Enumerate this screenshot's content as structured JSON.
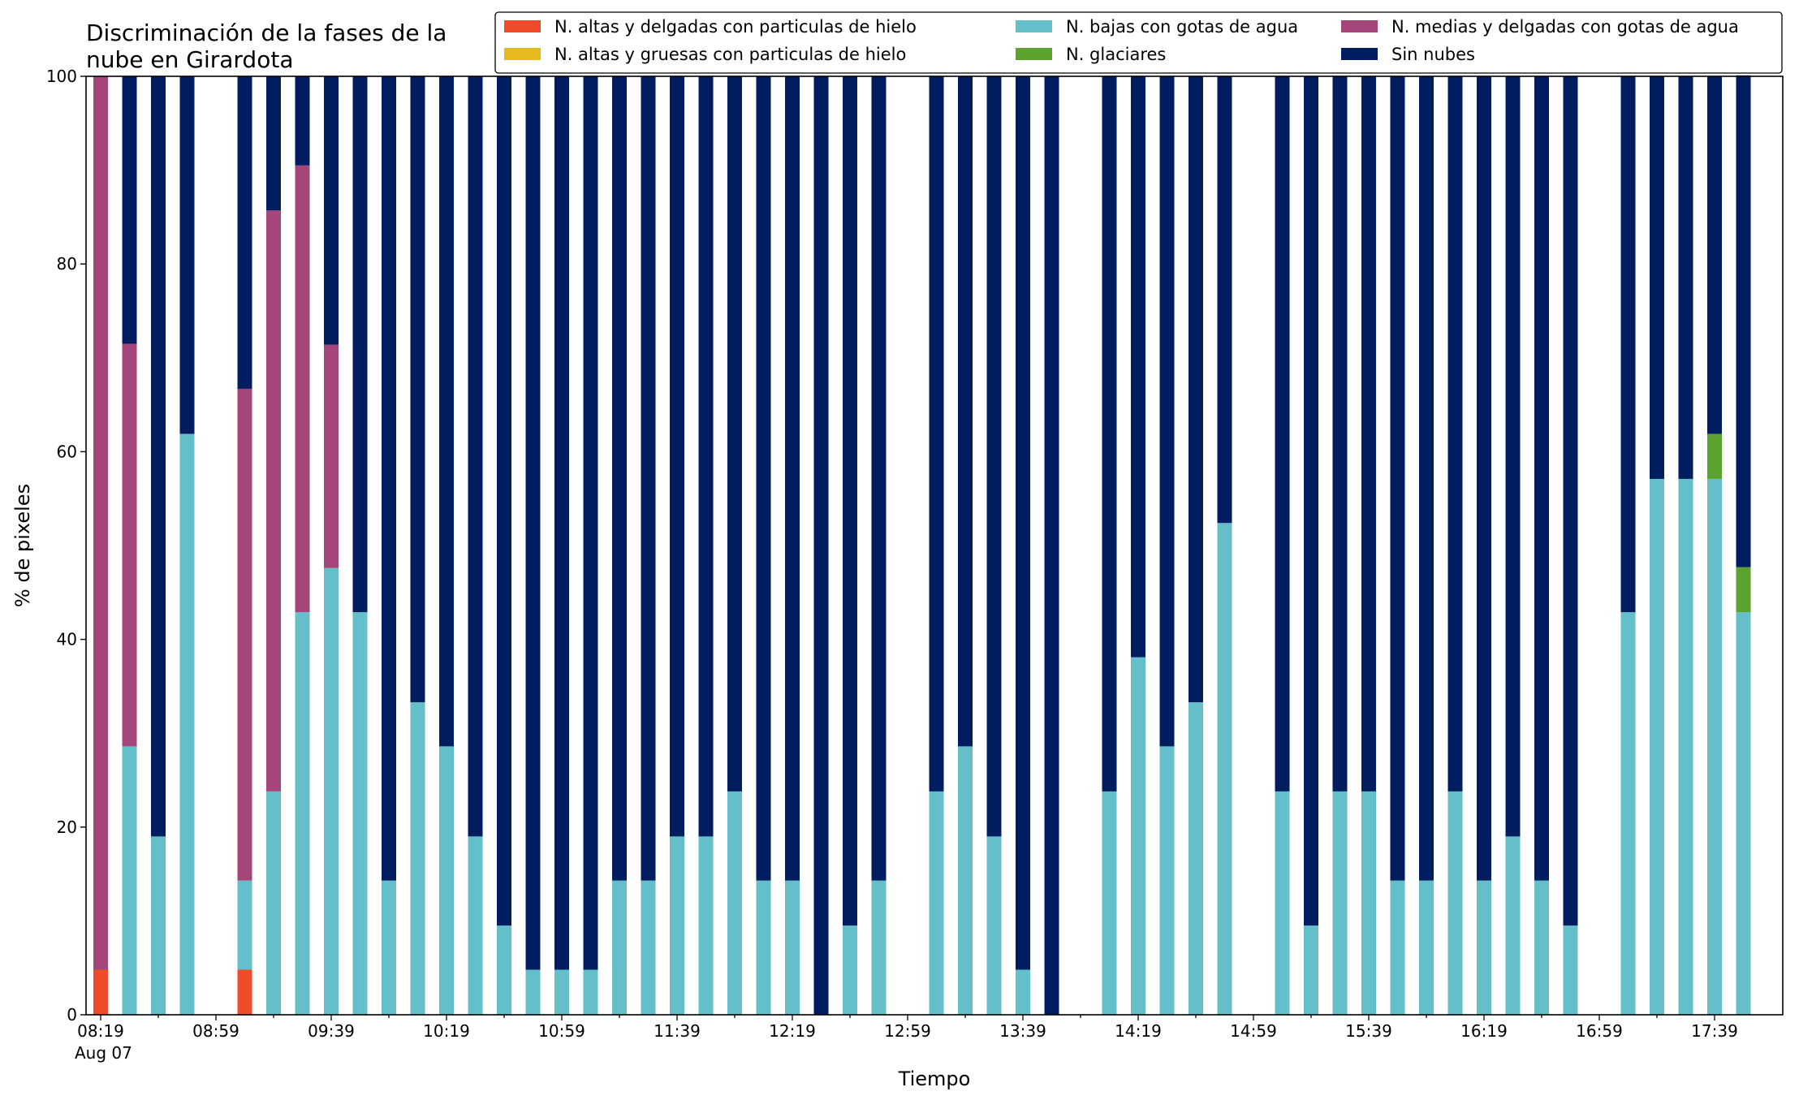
{
  "chart_data": {
    "type": "bar",
    "stacked": true,
    "title_lines": [
      "Discriminación de la fases de la",
      "nube en Girardota"
    ],
    "xlabel": "Tiempo",
    "ylabel": "% de pixeles",
    "ylim": [
      0,
      100
    ],
    "yticks": [
      0,
      20,
      40,
      60,
      80,
      100
    ],
    "grid": false,
    "legend_position": "top-right",
    "x_tick_labels": [
      "08:19",
      "08:59",
      "09:39",
      "10:19",
      "10:59",
      "11:39",
      "12:19",
      "12:59",
      "13:39",
      "14:19",
      "14:59",
      "15:39",
      "16:19",
      "16:59",
      "17:39"
    ],
    "x_tick_sublabel": "Aug 07",
    "x_start": "Aug 07 08:19",
    "slot_minutes": 10,
    "slot_count": 58,
    "bar_slots": [
      0,
      1,
      2,
      3,
      5,
      6,
      7,
      8,
      9,
      10,
      11,
      12,
      13,
      14,
      15,
      16,
      17,
      18,
      19,
      20,
      21,
      22,
      23,
      24,
      25,
      26,
      27,
      29,
      30,
      31,
      32,
      33,
      35,
      36,
      37,
      38,
      39,
      41,
      42,
      43,
      44,
      45,
      46,
      47,
      48,
      49,
      50,
      51,
      53,
      54,
      55,
      56,
      57
    ],
    "series": [
      {
        "name": "N. altas y delgadas con particulas de hielo",
        "color": "#ef4a2a",
        "values": [
          4.8,
          0,
          0,
          0,
          4.8,
          0,
          0,
          0,
          0,
          0,
          0,
          0,
          0,
          0,
          0,
          0,
          0,
          0,
          0,
          0,
          0,
          0,
          0,
          0,
          0,
          0,
          0,
          0,
          0,
          0,
          0,
          0,
          0,
          0,
          0,
          0,
          0,
          0,
          0,
          0,
          0,
          0,
          0,
          0,
          0,
          0,
          0,
          0,
          0,
          0,
          0,
          0,
          0
        ]
      },
      {
        "name": "N. altas y gruesas con particulas de hielo",
        "color": "#e6b91e",
        "values": [
          0,
          0,
          0,
          0,
          0,
          0,
          0,
          0,
          0,
          0,
          0,
          0,
          0,
          0,
          0,
          0,
          0,
          0,
          0,
          0,
          0,
          0,
          0,
          0,
          0,
          0,
          0,
          0,
          0,
          0,
          0,
          0,
          0,
          0,
          0,
          0,
          0,
          0,
          0,
          0,
          0,
          0,
          0,
          0,
          0,
          0,
          0,
          0,
          0,
          0,
          0,
          0,
          0
        ]
      },
      {
        "name": "N. bajas con gotas de agua",
        "color": "#65bfca",
        "values": [
          0,
          28.6,
          19,
          61.9,
          9.5,
          23.8,
          42.9,
          47.6,
          42.9,
          14.3,
          33.3,
          28.6,
          19,
          9.5,
          4.8,
          4.8,
          4.8,
          14.3,
          14.3,
          19,
          19,
          23.8,
          14.3,
          14.3,
          0,
          9.5,
          14.3,
          23.8,
          28.6,
          19,
          4.8,
          0,
          23.8,
          38.1,
          28.6,
          33.3,
          52.4,
          23.8,
          9.5,
          23.8,
          23.8,
          14.3,
          14.3,
          23.8,
          14.3,
          19,
          14.3,
          9.5,
          42.9,
          57.1,
          57.1,
          57.1,
          42.9
        ]
      },
      {
        "name": "N. glaciares",
        "color": "#5ca22e",
        "values": [
          0,
          0,
          0,
          0,
          0,
          0,
          0,
          0,
          0,
          0,
          0,
          0,
          0,
          0,
          0,
          0,
          0,
          0,
          0,
          0,
          0,
          0,
          0,
          0,
          0,
          0,
          0,
          0,
          0,
          0,
          0,
          0,
          0,
          0,
          0,
          0,
          0,
          0,
          0,
          0,
          0,
          0,
          0,
          0,
          0,
          0,
          0,
          0,
          0,
          0,
          0,
          4.8,
          4.8
        ]
      },
      {
        "name": "N. medias y delgadas con gotas de agua",
        "color": "#a4467a",
        "values": [
          95.2,
          42.9,
          0,
          0,
          52.4,
          61.9,
          47.6,
          23.8,
          0,
          0,
          0,
          0,
          0,
          0,
          0,
          0,
          0,
          0,
          0,
          0,
          0,
          0,
          0,
          0,
          0,
          0,
          0,
          0,
          0,
          0,
          0,
          0,
          0,
          0,
          0,
          0,
          0,
          0,
          0,
          0,
          0,
          0,
          0,
          0,
          0,
          0,
          0,
          0,
          0,
          0,
          0,
          0,
          0
        ]
      },
      {
        "name": "Sin nubes",
        "color": "#001e5f",
        "values": [
          0,
          28.5,
          81,
          38.1,
          33.3,
          14.3,
          9.5,
          28.6,
          57.1,
          85.7,
          66.7,
          71.4,
          81,
          90.5,
          95.2,
          95.2,
          95.2,
          85.7,
          85.7,
          81,
          81,
          76.2,
          85.7,
          85.7,
          100,
          90.5,
          85.7,
          76.2,
          71.4,
          81,
          95.2,
          100,
          76.2,
          61.9,
          71.4,
          66.7,
          47.6,
          76.2,
          90.5,
          76.2,
          76.2,
          85.7,
          85.7,
          76.2,
          85.7,
          81,
          85.7,
          90.5,
          57.1,
          42.9,
          42.9,
          38.1,
          52.4
        ]
      }
    ],
    "legend_order": [
      0,
      1,
      2,
      3,
      4,
      5
    ]
  }
}
